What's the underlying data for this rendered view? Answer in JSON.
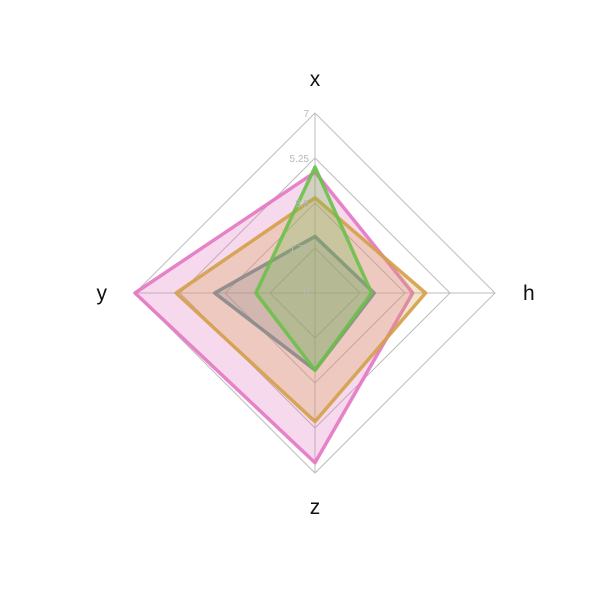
{
  "chart_data": {
    "type": "radar",
    "axes": [
      "x",
      "h",
      "z",
      "y"
    ],
    "rlim": [
      0,
      7
    ],
    "ticks": [
      "0",
      "1.75",
      "3.5",
      "5.25",
      "7"
    ],
    "grid": true,
    "legend": "none",
    "series": [
      {
        "values": [
          4.7,
          3.8,
          6.6,
          7.0
        ],
        "color": "#e377c2"
      },
      {
        "values": [
          3.7,
          4.3,
          5.0,
          5.4
        ],
        "color": "#d4a04a"
      },
      {
        "values": [
          2.2,
          2.3,
          3.0,
          3.9
        ],
        "color": "#8a8a8a"
      },
      {
        "values": [
          4.9,
          2.2,
          3.0,
          2.3
        ],
        "color": "#6cc04a"
      }
    ]
  }
}
